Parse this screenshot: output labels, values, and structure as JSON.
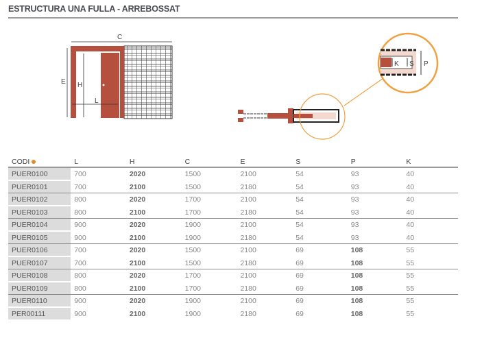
{
  "title": "ESTRUCTURA UNA FULLA - ARREBOSSAT",
  "diagram": {
    "labels": {
      "C": "C",
      "E": "E",
      "H": "H",
      "L": "L",
      "K": "K",
      "S": "S",
      "P": "P"
    },
    "colors": {
      "frame": "#b5503e",
      "accent": "#f0a040"
    }
  },
  "table": {
    "headers": [
      "CODI",
      "L",
      "H",
      "C",
      "E",
      "S",
      "P",
      "K"
    ],
    "rows": [
      [
        "PUER0100",
        "700",
        "2020",
        "1500",
        "2100",
        "54",
        "93",
        "40"
      ],
      [
        "PUER0101",
        "700",
        "2100",
        "1500",
        "2180",
        "54",
        "93",
        "40"
      ],
      [
        "PUER0102",
        "800",
        "2020",
        "1700",
        "2100",
        "54",
        "93",
        "40"
      ],
      [
        "PUER0103",
        "800",
        "2100",
        "1700",
        "2180",
        "54",
        "93",
        "40"
      ],
      [
        "PUER0104",
        "900",
        "2020",
        "1900",
        "2100",
        "54",
        "93",
        "40"
      ],
      [
        "PUER0105",
        "900",
        "2100",
        "1900",
        "2180",
        "54",
        "93",
        "40"
      ],
      [
        "PUER0106",
        "700",
        "2020",
        "1500",
        "2100",
        "69",
        "108",
        "55"
      ],
      [
        "PUER0107",
        "700",
        "2100",
        "1500",
        "2180",
        "69",
        "108",
        "55"
      ],
      [
        "PUER0108",
        "800",
        "2020",
        "1700",
        "2100",
        "69",
        "108",
        "55"
      ],
      [
        "PUER0109",
        "800",
        "2100",
        "1700",
        "2180",
        "69",
        "108",
        "55"
      ],
      [
        "PUER0110",
        "900",
        "2020",
        "1900",
        "2100",
        "69",
        "108",
        "55"
      ],
      [
        "PER00111",
        "900",
        "2100",
        "1900",
        "2180",
        "69",
        "108",
        "55"
      ]
    ]
  }
}
